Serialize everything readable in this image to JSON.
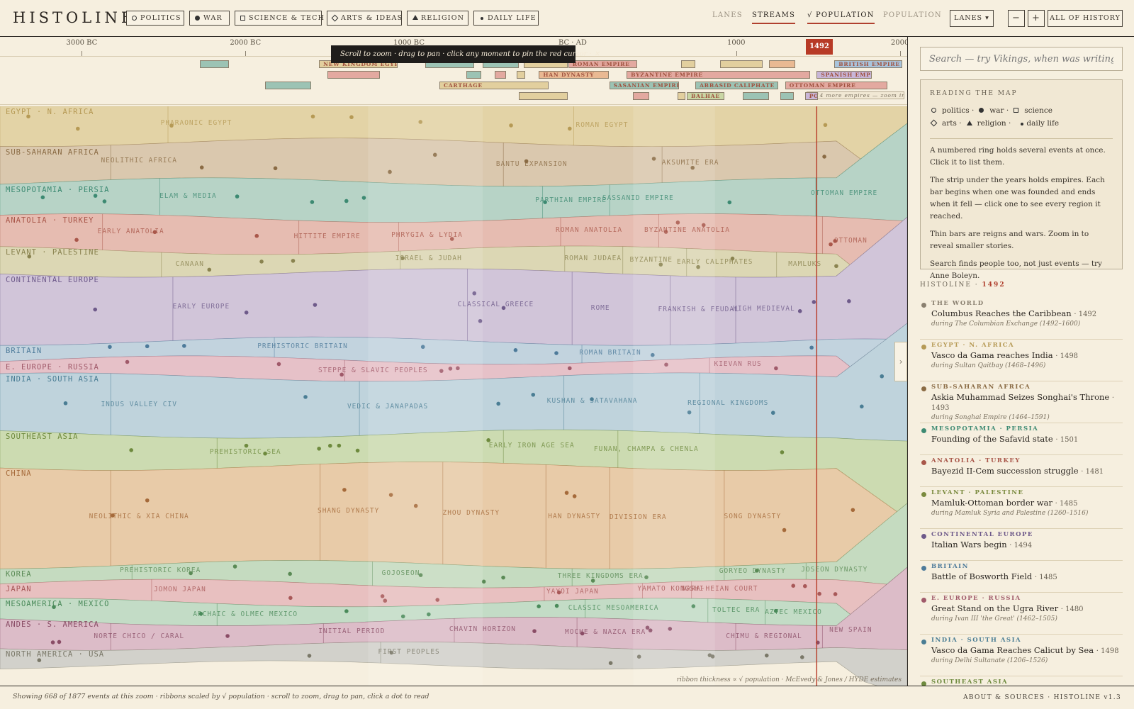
{
  "app": {
    "logo": "HISTOLINE"
  },
  "categories": [
    {
      "label": "POLITICS",
      "icon": "circle-icon"
    },
    {
      "label": "WAR",
      "icon": "dot-icon"
    },
    {
      "label": "SCIENCE & TECH",
      "icon": "square-icon"
    },
    {
      "label": "ARTS & IDEAS",
      "icon": "diamond-icon"
    },
    {
      "label": "RELIGION",
      "icon": "triangle-icon"
    },
    {
      "label": "DAILY LIFE",
      "icon": "small-dot-icon"
    }
  ],
  "view_modes": [
    {
      "label": "LANES",
      "active": false
    },
    {
      "label": "STREAMS",
      "active": true
    },
    {
      "label": "√ POPULATION",
      "active": true
    },
    {
      "label": "POPULATION",
      "active": false
    }
  ],
  "toolbar": {
    "lanes_dropdown": "LANES ▾",
    "zoom_out": "−",
    "zoom_in": "+",
    "all_history": "ALL OF HISTORY"
  },
  "timeline": {
    "ticks": [
      {
        "label": "3000 BC",
        "year": -3000
      },
      {
        "label": "2000 BC",
        "year": -2000
      },
      {
        "label": "1000 BC",
        "year": -1000
      },
      {
        "label": "BC · AD",
        "year": 0
      },
      {
        "label": "1000",
        "year": 1000
      },
      {
        "label": "2000",
        "year": 2000
      }
    ],
    "range": [
      -3500,
      2045
    ],
    "cursor_year": "1492",
    "cursor_value": 1492
  },
  "tooltip": "Scroll to zoom · drag to pan · click any moment to pin the red cursor · ✕",
  "empires": [
    {
      "label": "",
      "start": -2280,
      "end": -2100,
      "row": 0,
      "color": "#9cc3b4"
    },
    {
      "label": "NEW KINGDOM EGYPT",
      "start": -1550,
      "end": -1070,
      "row": 0,
      "color": "#e2cf9e"
    },
    {
      "label": "",
      "start": -900,
      "end": -600,
      "row": 0,
      "color": "#9cc3b4"
    },
    {
      "label": "",
      "start": -550,
      "end": -330,
      "row": 0,
      "color": "#9cc3b4"
    },
    {
      "label": "",
      "start": -300,
      "end": -30,
      "row": 0,
      "color": "#e2cf9e"
    },
    {
      "label": "ROMAN EMPIRE",
      "start": -27,
      "end": 395,
      "row": 0,
      "color": "#e3a9a0"
    },
    {
      "label": "",
      "start": 665,
      "end": 750,
      "row": 0,
      "color": "#e2cf9e"
    },
    {
      "label": "",
      "start": 900,
      "end": 1160,
      "row": 0,
      "color": "#e2cf9e"
    },
    {
      "label": "",
      "start": 1200,
      "end": 1360,
      "row": 0,
      "color": "#e9b993"
    },
    {
      "label": "BRITISH EMPIRE",
      "start": 1600,
      "end": 2015,
      "row": 0,
      "color": "#a9c4dc"
    },
    {
      "label": "",
      "start": -1500,
      "end": -1180,
      "row": 1,
      "color": "#e3a9a0"
    },
    {
      "label": "",
      "start": -650,
      "end": -560,
      "row": 1,
      "color": "#9cc3b4"
    },
    {
      "label": "",
      "start": -475,
      "end": -405,
      "row": 1,
      "color": "#e3a9a0"
    },
    {
      "label": "",
      "start": -340,
      "end": -290,
      "row": 1,
      "color": "#e2cf9e"
    },
    {
      "label": "HAN DYNASTY",
      "start": -206,
      "end": 220,
      "row": 1,
      "color": "#e9b993"
    },
    {
      "label": "BYZANTINE EMPIRE",
      "start": 330,
      "end": 1453,
      "row": 1,
      "color": "#e3a9a0"
    },
    {
      "label": "SPANISH EMPIRE",
      "start": 1492,
      "end": 1830,
      "row": 1,
      "color": "#c8b6d8"
    },
    {
      "label": "",
      "start": -1880,
      "end": -1600,
      "row": 2,
      "color": "#9cc3b4"
    },
    {
      "label": "CARTHAGE",
      "start": -814,
      "end": -146,
      "row": 2,
      "color": "#e2cf9e"
    },
    {
      "label": "SASANIAN EMPIRE",
      "start": 224,
      "end": 651,
      "row": 2,
      "color": "#9cc3b4"
    },
    {
      "label": "ABBASID CALIPHATE",
      "start": 750,
      "end": 1258,
      "row": 2,
      "color": "#9cc3b4"
    },
    {
      "label": "OTTOMAN EMPIRE",
      "start": 1299,
      "end": 1922,
      "row": 2,
      "color": "#e3a9a0"
    },
    {
      "label": "",
      "start": -330,
      "end": -30,
      "row": 3,
      "color": "#e2cf9e"
    },
    {
      "label": "",
      "start": 370,
      "end": 470,
      "row": 3,
      "color": "#e3a9a0"
    },
    {
      "label": "",
      "start": 640,
      "end": 690,
      "row": 3,
      "color": "#e2cf9e"
    },
    {
      "label": "BALHAE",
      "start": 698,
      "end": 926,
      "row": 3,
      "color": "#c9d6a4"
    },
    {
      "label": "",
      "start": 1040,
      "end": 1200,
      "row": 3,
      "color": "#9cc3b4"
    },
    {
      "label": "",
      "start": 1270,
      "end": 1350,
      "row": 3,
      "color": "#9cc3b4"
    },
    {
      "label": "PO",
      "start": 1420,
      "end": 1500,
      "row": 3,
      "color": "#c8b6d8"
    }
  ],
  "more_empires_note": "+14 more empires — zoom in",
  "regions": [
    {
      "name": "EGYPT · N. AFRICA",
      "color": "#e3d3a6",
      "text": "#b69a55",
      "eras": [
        {
          "label": "PHARAONIC EGYPT",
          "year": -2300
        },
        {
          "label": "ROMAN EGYPT",
          "year": 180
        }
      ]
    },
    {
      "name": "SUB-SAHARAN AFRICA",
      "color": "#dac8ae",
      "text": "#8a6b44",
      "eras": [
        {
          "label": "NEOLITHIC AFRICA",
          "year": -2650
        },
        {
          "label": "BANTU EXPANSION",
          "year": -250
        },
        {
          "label": "AKSUMITE ERA",
          "year": 720
        }
      ]
    },
    {
      "name": "MESOPOTAMIA · PERSIA",
      "color": "#b7d3c6",
      "text": "#3d8a72",
      "eras": [
        {
          "label": "ELAM & MEDIA",
          "year": -2350
        },
        {
          "label": "PARTHIAN EMPIRE",
          "year": -10
        },
        {
          "label": "SASSANID EMPIRE",
          "year": 400
        },
        {
          "label": "OTTOMAN EMPIRE",
          "year": 1660
        }
      ]
    },
    {
      "name": "ANATOLIA · TURKEY",
      "color": "#e6bcb1",
      "text": "#a9574a",
      "eras": [
        {
          "label": "EARLY ANATOLIA",
          "year": -2700
        },
        {
          "label": "HITTITE EMPIRE",
          "year": -1500
        },
        {
          "label": "PHRYGIA & LYDIA",
          "year": -890
        },
        {
          "label": "ROMAN ANATOLIA",
          "year": 100
        },
        {
          "label": "BYZANTINE ANATOLIA",
          "year": 700
        },
        {
          "label": "OTTOMAN",
          "year": 1700
        }
      ]
    },
    {
      "name": "LEVANT · PALESTINE",
      "color": "#dcd7b4",
      "text": "#8a8350",
      "eras": [
        {
          "label": "CANAAN",
          "year": -2340
        },
        {
          "label": "ISRAEL & JUDAH",
          "year": -880
        },
        {
          "label": "ROMAN JUDAEA",
          "year": 125
        },
        {
          "label": "BYZANTINE",
          "year": 480
        },
        {
          "label": "EARLY CALIPHATES",
          "year": 870
        },
        {
          "label": "MAMLUKS",
          "year": 1420
        }
      ]
    },
    {
      "name": "CONTINENTAL EUROPE",
      "color": "#d1c5d9",
      "text": "#6e5a8a",
      "eras": [
        {
          "label": "EARLY EUROPE",
          "year": -2270
        },
        {
          "label": "CLASSICAL GREECE",
          "year": -470
        },
        {
          "label": "ROME",
          "year": 170
        },
        {
          "label": "FRANKISH & FEUDAL",
          "year": 770
        },
        {
          "label": "HIGH MEDIEVAL",
          "year": 1170
        }
      ]
    },
    {
      "name": "BRITAIN",
      "color": "#c2d3de",
      "text": "#4d7a9a",
      "eras": [
        {
          "label": "PREHISTORIC BRITAIN",
          "year": -1650
        },
        {
          "label": "ROMAN BRITAIN",
          "year": 230
        }
      ]
    },
    {
      "name": "E. EUROPE · RUSSIA",
      "color": "#e6c1c8",
      "text": "#a05a6a",
      "eras": [
        {
          "label": "STEPPE & SLAVIC PEOPLES",
          "year": -1220
        },
        {
          "label": "KIEVAN RUS",
          "year": 1010
        }
      ]
    },
    {
      "name": "INDIA · SOUTH ASIA",
      "color": "#bfd3dc",
      "text": "#4a7d94",
      "eras": [
        {
          "label": "INDUS VALLEY CIV",
          "year": -2650
        },
        {
          "label": "VEDIC & JANAPADAS",
          "year": -1130
        },
        {
          "label": "KUSHAN & SATAVAHANA",
          "year": 120
        },
        {
          "label": "REGIONAL KINGDOMS",
          "year": 950
        }
      ]
    },
    {
      "name": "SOUTHEAST ASIA",
      "color": "#ccdbb1",
      "text": "#6e8a3e",
      "eras": [
        {
          "label": "PREHISTORIC SEA",
          "year": -2000
        },
        {
          "label": "EARLY IRON AGE SEA",
          "year": -250
        },
        {
          "label": "FUNAN, CHAMPA & CHENLA",
          "year": 450
        }
      ]
    },
    {
      "name": "CHINA",
      "color": "#e8cba8",
      "text": "#a56a3a",
      "eras": [
        {
          "label": "NEOLITHIC & XIA CHINA",
          "year": -2650
        },
        {
          "label": "SHANG DYNASTY",
          "year": -1370
        },
        {
          "label": "ZHOU DYNASTY",
          "year": -620
        },
        {
          "label": "HAN DYNASTY",
          "year": 10
        },
        {
          "label": "DIVISION ERA",
          "year": 400
        },
        {
          "label": "SONG DYNASTY",
          "year": 1100
        }
      ]
    },
    {
      "name": "KOREA",
      "color": "#c5dbc0",
      "text": "#5a8a55",
      "eras": [
        {
          "label": "PREHISTORIC KOREA",
          "year": -2520
        },
        {
          "label": "GOJOSEON",
          "year": -1050
        },
        {
          "label": "THREE KINGDOMS ERA",
          "year": 170
        },
        {
          "label": "GORYEO DYNASTY",
          "year": 1100
        },
        {
          "label": "JOSEON DYNASTY",
          "year": 1600
        }
      ]
    },
    {
      "name": "JAPAN",
      "color": "#e8c0c0",
      "text": "#a85858",
      "eras": [
        {
          "label": "JOMON JAPAN",
          "year": -2400
        },
        {
          "label": "YAYOI JAPAN",
          "year": 0
        },
        {
          "label": "YAMATO KONGSHI",
          "year": 600
        },
        {
          "label": "NARA-HEIAN COURT",
          "year": 900
        }
      ]
    },
    {
      "name": "MESOAMERICA · MEXICO",
      "color": "#c3dcc6",
      "text": "#4a8a5a",
      "eras": [
        {
          "label": "ARCHAIC & OLMEC MEXICO",
          "year": -2000
        },
        {
          "label": "CLASSIC MESOAMERICA",
          "year": 250
        },
        {
          "label": "TOLTEC ERA",
          "year": 1000
        },
        {
          "label": "AZTEC MEXICO",
          "year": 1350
        }
      ]
    },
    {
      "name": "ANDES · S. AMERICA",
      "color": "#dcbcc8",
      "text": "#8a4d66",
      "eras": [
        {
          "label": "NORTE CHICO / CARAL",
          "year": -2650
        },
        {
          "label": "INITIAL PERIOD",
          "year": -1350
        },
        {
          "label": "CHAVIN HORIZON",
          "year": -550
        },
        {
          "label": "MOCHE & NAZCA ERA",
          "year": 200
        },
        {
          "label": "CHIMU & REGIONAL",
          "year": 1170
        },
        {
          "label": "NEW SPAIN",
          "year": 1700
        }
      ]
    },
    {
      "name": "NORTH AMERICA · USA",
      "color": "#d2d1cb",
      "text": "#7a7868",
      "eras": [
        {
          "label": "FIRST PEOPLES",
          "year": -1000
        }
      ]
    }
  ],
  "streams_caption": "ribbon thickness ∝ √ population · McEvedy & Jones / HYDE estimates",
  "collapse_label": "›",
  "search": {
    "placeholder": "Search — try Vikings, when was writing invented, Rome"
  },
  "reading_map": {
    "title": "READING THE MAP",
    "legend": [
      {
        "label": "politics ·",
        "icon": "circle-icon"
      },
      {
        "label": "war ·",
        "icon": "dot-icon"
      },
      {
        "label": "science",
        "icon": "square-icon"
      },
      {
        "label": "arts ·",
        "icon": "diamond-icon"
      },
      {
        "label": "religion ·",
        "icon": "triangle-icon"
      },
      {
        "label": "daily life",
        "icon": "small-dot-icon"
      }
    ],
    "paragraphs": [
      "A numbered ring holds several events at once. Click it to list them.",
      "The strip under the years holds empires. Each bar begins when one was founded and ends when it fell — click one to see every region it reached.",
      "Thin bars are reigns and wars. Zoom in to reveal smaller stories.",
      "Search finds people too, not just events — try Anne Boleyn."
    ]
  },
  "feed": {
    "title_prefix": "HISTOLINE ·",
    "title_year": "1492",
    "items": [
      {
        "region": "THE WORLD",
        "color": "#8a8070",
        "event": "Columbus Reaches the Caribbean",
        "year": "· 1492",
        "during": "during The Columbian Exchange (1492–1600)"
      },
      {
        "region": "EGYPT · N. AFRICA",
        "color": "#b69a55",
        "event": "Vasco da Gama reaches India",
        "year": "· 1498",
        "during": "during Sultan Qaitbay (1468–1496)"
      },
      {
        "region": "SUB-SAHARAN AFRICA",
        "color": "#8a6b44",
        "event": "Askia Muhammad Seizes Songhai's Throne",
        "year": "· 1493",
        "during": "during Songhai Empire (1464–1591)"
      },
      {
        "region": "MESOPOTAMIA · PERSIA",
        "color": "#3d8a72",
        "event": "Founding of the Safavid state",
        "year": "· 1501",
        "during": ""
      },
      {
        "region": "ANATOLIA · TURKEY",
        "color": "#a9574a",
        "event": "Bayezid II-Cem succession struggle",
        "year": "· 1481",
        "during": ""
      },
      {
        "region": "LEVANT · PALESTINE",
        "color": "#7a8a3e",
        "event": "Mamluk-Ottoman border war",
        "year": "· 1485",
        "during": "during Mamluk Syria and Palestine (1260–1516)"
      },
      {
        "region": "CONTINENTAL EUROPE",
        "color": "#6e5a8a",
        "event": "Italian Wars begin",
        "year": "· 1494",
        "during": ""
      },
      {
        "region": "BRITAIN",
        "color": "#4d7a9a",
        "event": "Battle of Bosworth Field",
        "year": "· 1485",
        "during": ""
      },
      {
        "region": "E. EUROPE · RUSSIA",
        "color": "#a05a6a",
        "event": "Great Stand on the Ugra River",
        "year": "· 1480",
        "during": "during Ivan III 'the Great' (1462–1505)"
      },
      {
        "region": "INDIA · SOUTH ASIA",
        "color": "#4a7d94",
        "event": "Vasco da Gama Reaches Calicut by Sea",
        "year": "· 1498",
        "during": "during Delhi Sultanate (1206–1526)"
      },
      {
        "region": "SOUTHEAST ASIA",
        "color": "#6e8a3e",
        "event": "",
        "year": "",
        "during": ""
      }
    ]
  },
  "footer": {
    "status": "Showing 668 of 1877 events at this zoom · ribbons scaled by √ population · scroll to zoom, drag to pan, click a dot to read",
    "about": "ABOUT & SOURCES · HISTOLINE v1.3"
  }
}
